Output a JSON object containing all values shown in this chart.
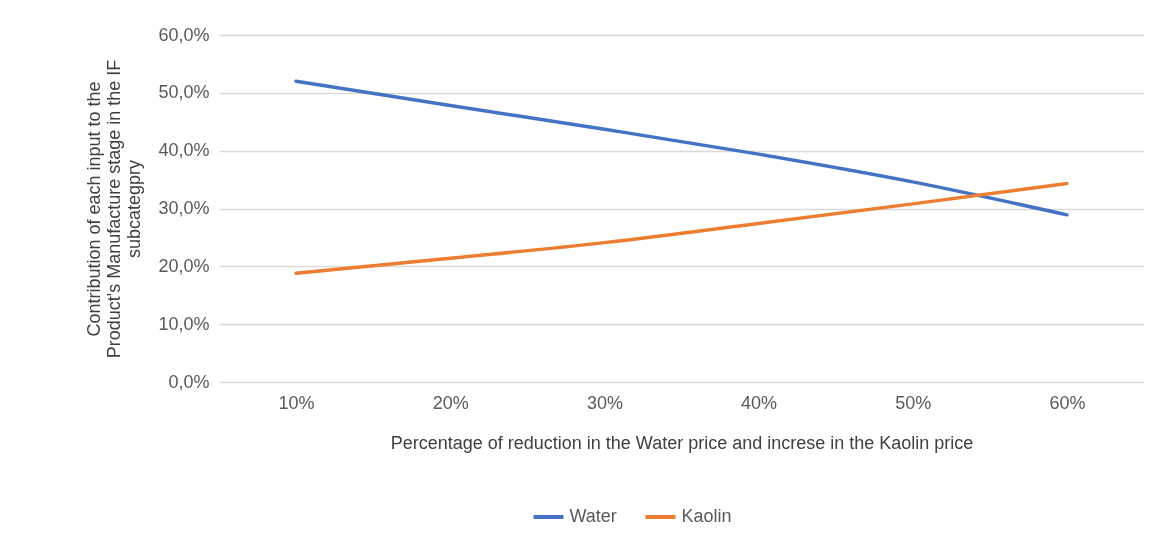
{
  "chart_data": {
    "type": "line",
    "xlabel": "Percentage of reduction in the Water price and increse in the Kaolin price",
    "ylabel": "Contribution of each input to the Product's Manufacture stage in the IF subcategpry",
    "categories": [
      "10%",
      "20%",
      "30%",
      "40%",
      "50%",
      "60%"
    ],
    "series": [
      {
        "name": "Water",
        "color": "#4472c4",
        "values": [
          52.0,
          47.8,
          43.7,
          39.4,
          34.6,
          28.9
        ]
      },
      {
        "name": "Kaolin",
        "color": "#ed7d31",
        "values": [
          18.8,
          21.4,
          24.1,
          27.4,
          30.8,
          34.3
        ]
      }
    ],
    "ylim": [
      0,
      60
    ],
    "yticks": [
      {
        "value": 0,
        "label": "0,0%"
      },
      {
        "value": 10,
        "label": "10,0%"
      },
      {
        "value": 20,
        "label": "20,0%"
      },
      {
        "value": 30,
        "label": "30,0%"
      },
      {
        "value": 40,
        "label": "40,0%"
      },
      {
        "value": 50,
        "label": "50,0%"
      },
      {
        "value": 60,
        "label": "60,0%"
      }
    ],
    "grid": "y",
    "legend": "bottom",
    "marker": "none",
    "line_style": "solid"
  }
}
